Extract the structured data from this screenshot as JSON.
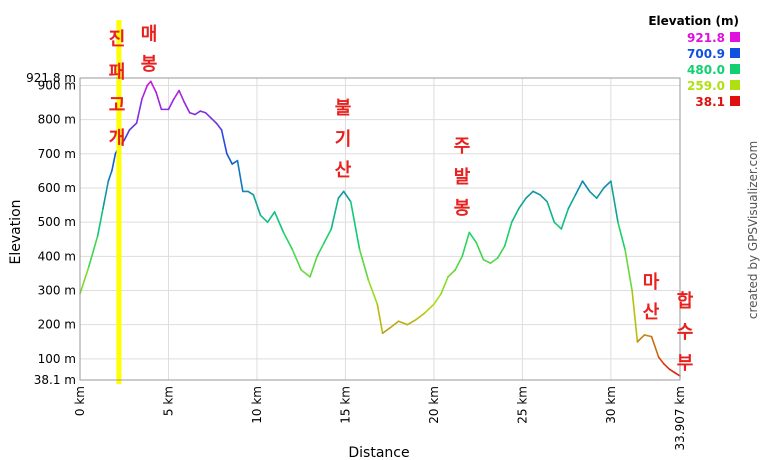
{
  "chart_data": {
    "type": "line",
    "title": "",
    "xlabel": "Distance",
    "ylabel": "Elevation",
    "xlim": [
      0,
      33.907
    ],
    "ylim": [
      38.1,
      921.8
    ],
    "x_ticks": [
      {
        "value": 0,
        "label": "0 km"
      },
      {
        "value": 5,
        "label": "5 km"
      },
      {
        "value": 10,
        "label": "10 km"
      },
      {
        "value": 15,
        "label": "15 km"
      },
      {
        "value": 20,
        "label": "20 km"
      },
      {
        "value": 25,
        "label": "25 km"
      },
      {
        "value": 30,
        "label": "30 km"
      },
      {
        "value": 33.907,
        "label": "33.907 km"
      }
    ],
    "y_ticks": [
      {
        "value": 38.1,
        "label": "38.1 m"
      },
      {
        "value": 100,
        "label": "100 m"
      },
      {
        "value": 200,
        "label": "200 m"
      },
      {
        "value": 300,
        "label": "300 m"
      },
      {
        "value": 400,
        "label": "400 m"
      },
      {
        "value": 500,
        "label": "500 m"
      },
      {
        "value": 600,
        "label": "600 m"
      },
      {
        "value": 700,
        "label": "700 m"
      },
      {
        "value": 800,
        "label": "800 m"
      },
      {
        "value": 900,
        "label": "900 m"
      },
      {
        "value": 921.8,
        "label": "921.8 m"
      }
    ],
    "grid": true,
    "legend": {
      "title": "Elevation (m)",
      "placement": "top-right",
      "entries": [
        {
          "label": "921.8",
          "color": "#e010e0"
        },
        {
          "label": "700.9",
          "color": "#1050e0"
        },
        {
          "label": "480.0",
          "color": "#10d070"
        },
        {
          "label": "259.0",
          "color": "#b0e010"
        },
        {
          "label": "38.1",
          "color": "#e01010"
        }
      ]
    },
    "color_stops": [
      {
        "value": 38.1,
        "color": "#e01010"
      },
      {
        "value": 259.0,
        "color": "#b0e010"
      },
      {
        "value": 480.0,
        "color": "#10d070"
      },
      {
        "value": 700.9,
        "color": "#1050e0"
      },
      {
        "value": 921.8,
        "color": "#e010e0"
      }
    ],
    "marker": {
      "x": 2.2,
      "color": "#ffff00"
    },
    "series": [
      {
        "x": [
          0,
          0.5,
          1,
          1.3,
          1.6,
          1.8,
          2,
          2.2,
          2.5,
          2.8,
          3.2,
          3.5,
          3.8,
          4.0,
          4.3,
          4.6,
          5.0,
          5.3,
          5.6,
          5.9,
          6.2,
          6.5,
          6.8,
          7.1,
          7.4,
          7.7,
          8.0,
          8.3,
          8.6,
          8.9,
          9.2,
          9.5,
          9.8,
          10.2,
          10.6,
          11.0,
          11.5,
          12.0,
          12.5,
          13.0,
          13.4,
          13.8,
          14.2,
          14.6,
          14.9,
          15.3,
          15.8,
          16.3,
          16.8,
          17.1,
          17.5,
          18.0,
          18.5,
          19.0,
          19.5,
          20.0,
          20.4,
          20.8,
          21.2,
          21.6,
          22.0,
          22.4,
          22.8,
          23.2,
          23.6,
          24.0,
          24.4,
          24.8,
          25.2,
          25.6,
          26.0,
          26.4,
          26.8,
          27.2,
          27.6,
          28.0,
          28.4,
          28.8,
          29.2,
          29.6,
          30.0,
          30.4,
          30.8,
          31.2,
          31.5,
          31.9,
          32.3,
          32.7,
          33.0,
          33.3,
          33.6,
          33.907
        ],
        "y": [
          290,
          370,
          460,
          540,
          620,
          650,
          700,
          720,
          740,
          770,
          790,
          860,
          900,
          912,
          880,
          830,
          830,
          860,
          885,
          850,
          820,
          815,
          825,
          820,
          805,
          790,
          770,
          700,
          670,
          680,
          590,
          590,
          580,
          520,
          500,
          530,
          470,
          420,
          360,
          340,
          400,
          440,
          480,
          570,
          590,
          560,
          420,
          330,
          260,
          175,
          190,
          210,
          200,
          215,
          235,
          260,
          290,
          340,
          360,
          400,
          470,
          440,
          390,
          380,
          395,
          430,
          500,
          540,
          570,
          590,
          580,
          560,
          500,
          480,
          540,
          580,
          620,
          590,
          570,
          600,
          620,
          500,
          420,
          300,
          150,
          170,
          165,
          105,
          85,
          70,
          60,
          50
        ]
      }
    ]
  },
  "labels": {
    "marker_name": "진패고개",
    "peak_1": "매봉",
    "peak_2": "불기산",
    "peak_3": "주발봉",
    "end_1": "마산",
    "end_2": "합수부",
    "credit": "created by GPSVisualizer.com"
  }
}
